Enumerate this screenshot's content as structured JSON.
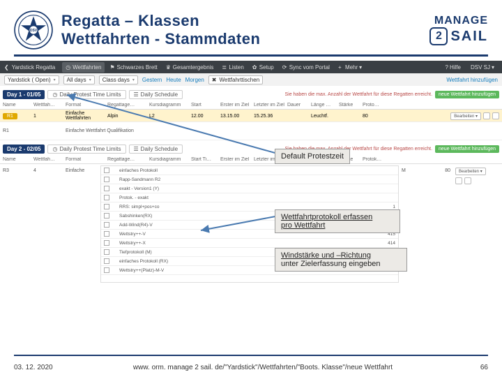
{
  "header": {
    "title_line1": "Regatta – Klassen",
    "title_line2": "Wettfahrten - Stammdaten",
    "brand_manage": "MANAGE",
    "brand_sail": "SAIL",
    "brand_two": "2"
  },
  "appstrip": {
    "brand": "Yardstick Regatta",
    "tabs": [
      {
        "label": "Wettfahrten",
        "active": true
      },
      {
        "label": "Schwarzes Brett"
      },
      {
        "label": "Gesamtergebnis"
      },
      {
        "label": "Listen"
      },
      {
        "label": "Setup"
      },
      {
        "label": "Sync vom Portal"
      },
      {
        "label": "Mehr"
      }
    ],
    "right": [
      {
        "label": "Hilfe"
      },
      {
        "label": "DSV SJ"
      }
    ]
  },
  "filterbar": {
    "sel1": "Yardstick ( Open)",
    "sel2": "All days",
    "sel3": "Class days",
    "links": [
      "Gestern",
      "Heute",
      "Morgen"
    ],
    "btn": "Wettfahrttischen",
    "right_link": "Wettfahrt hinzufügen"
  },
  "day1": {
    "badge": "Day 1 - 01/05",
    "pill1": "Daily Protest Time Limits",
    "pill2": "Daily Schedule",
    "warn": "Sie haben die max. Anzahl der Wettfahrt für diese Regatten erreicht.",
    "greenbtn": "neue Wettfahrt hinzufügen"
  },
  "gridhead": [
    "Name",
    "Wettfah…",
    "Format",
    "Regattage…",
    "Kursdiagramm",
    "Start",
    "Erster im Ziel",
    "Letzter im Ziel",
    "Dauer",
    "Länge …",
    "Stärke",
    "Proto…",
    ""
  ],
  "row1": {
    "tag": "R1",
    "num": "1",
    "format": "Einfache Wettfahrten",
    "course": "Alpin",
    "kurs": "L2",
    "start": "12.00",
    "first": "13.15.00",
    "last": "15.25.36",
    "dauer": "",
    "laenge": "Leuchtf.",
    "staerke": "",
    "proto": "80",
    "action_label": "Bearbeiten"
  },
  "row2": {
    "name": "R1",
    "format": "Einfache Wettfahrt Qualifikation",
    "action_label": "Bearbeiten"
  },
  "day2": {
    "badge": "Day 2 - 02/05",
    "pill1": "Daily Protest Time Limits",
    "pill2": "Daily Schedule",
    "warn": "Sie haben die max. Anzahl der Wettfahrt für diese Regatten erreicht.",
    "greenbtn": "neue Wettfahrt hinzufügen"
  },
  "gridhead2": [
    "Name",
    "Wettfah…",
    "Format",
    "Regattage…",
    "Kursdiagramm",
    "Start Ti…",
    "Erster im Ziel",
    "Letzter im Ziel",
    "Dauer",
    "Länge in…",
    "Stärke",
    "Protok…",
    "",
    ""
  ],
  "list": {
    "r3": "R3",
    "num": "4",
    "fmt": "Einfache",
    "m1": "M",
    "rows": [
      {
        "label": "einfaches Protokoll",
        "val": ""
      },
      {
        "label": "Rapp-Sandmann R2",
        "val": ""
      },
      {
        "label": "exakt - Version1 (Y)",
        "val": ""
      },
      {
        "label": "Protok. - exakt",
        "val": ""
      },
      {
        "label": "RRS: simpl+pos+co",
        "val": "1"
      },
      {
        "label": "Sabshinken(RX)",
        "val": "440"
      },
      {
        "label": "Add-Wind(R4)-V",
        "val": ""
      },
      {
        "label": "Wettstry++-V",
        "val": "415"
      },
      {
        "label": "Wettstry++-X",
        "val": "414"
      },
      {
        "label": "Tiefprotokoll (M)",
        "val": "87"
      },
      {
        "label": "einfaches Protokoll (RX)",
        "val": "80"
      },
      {
        "label": "Wettstry++(Platz)-M-V",
        "val": ""
      }
    ],
    "r_proto": "80",
    "action_label": "Bearbeiten"
  },
  "annot": {
    "a1": "Default Protestzeit",
    "a2_l1": "Wettfahrtprotokoll erfassen",
    "a2_l2": "pro Wettfahrt",
    "a3_l1": "Windstärke und –Richtung",
    "a3_l2": "unter Zielerfassung eingeben"
  },
  "footer": {
    "date": "03. 12. 2020",
    "url": "www. orm. manage 2 sail. de/\"Yardstick\"/Wettfahrten/\"Boots. Klasse\"/neue Wettfahrt",
    "page": "66"
  },
  "colors": {
    "brand": "#1a3a6e",
    "yellow_row": "#fff3cd",
    "annot_bg": "#eceae6",
    "green": "#5cb85c",
    "warn": "#b94a48",
    "arrow": "#4a7ab0"
  }
}
